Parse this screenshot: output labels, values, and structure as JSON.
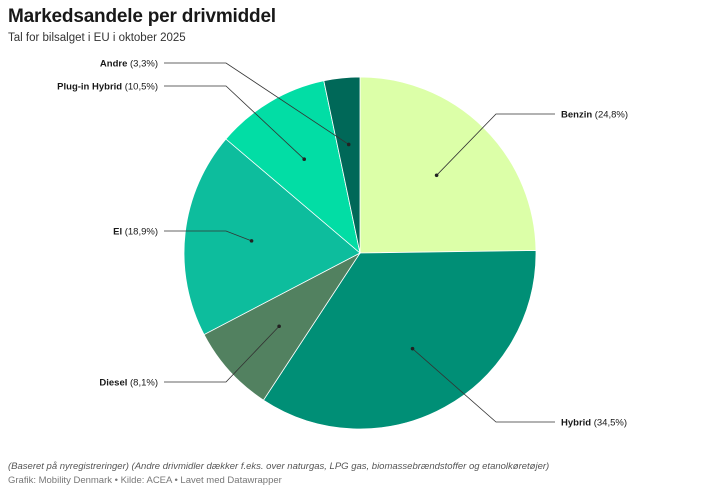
{
  "title": "Markedsandele per drivmiddel",
  "subtitle": "Tal for bilsalget i EU i oktober 2025",
  "notes": "(Baseret på nyregistreringer) (Andre drivmidler dækker f.eks. over naturgas, LPG gas, biomassebrændstoffer og etanolkøretøjer)",
  "byline": "Grafik: Mobility Denmark • Kilde: ACEA • Lavet med Datawrapper",
  "chart_data": {
    "type": "pie",
    "slices": [
      {
        "name": "Benzin",
        "value": 24.8,
        "label": "(24,8%)",
        "color": "#dcffa8"
      },
      {
        "name": "Hybrid",
        "value": 34.5,
        "label": "(34,5%)",
        "color": "#008f76"
      },
      {
        "name": "Diesel",
        "value": 8.1,
        "label": "(8,1%)",
        "color": "#528160"
      },
      {
        "name": "El",
        "value": 18.9,
        "label": "(18,9%)",
        "color": "#0dbd9d"
      },
      {
        "name": "Plug-in Hybrid",
        "value": 10.5,
        "label": "(10,5%)",
        "color": "#02dda5"
      },
      {
        "name": "Andre",
        "value": 3.3,
        "label": "(3,3%)",
        "color": "#006858"
      }
    ]
  }
}
